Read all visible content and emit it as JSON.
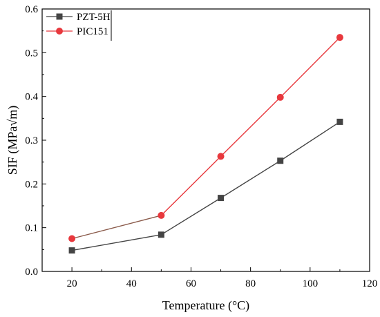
{
  "chart_data": {
    "type": "line",
    "xlabel": "Temperature (°C)",
    "ylabel": "SIF (MPa√m)",
    "xlim": [
      10,
      120
    ],
    "ylim": [
      0.0,
      0.6
    ],
    "xticks": [
      "20",
      "40",
      "60",
      "80",
      "100",
      "120"
    ],
    "yticks": [
      "0.0",
      "0.1",
      "0.2",
      "0.3",
      "0.4",
      "0.5",
      "0.6"
    ],
    "x": [
      20,
      50,
      70,
      90,
      110
    ],
    "legend_position": "top-left",
    "grid": false,
    "series": [
      {
        "name": "PZT-5H",
        "values": [
          0.048,
          0.084,
          0.168,
          0.253,
          0.342
        ],
        "color": "#444444",
        "line_color": "#444444",
        "marker": "square"
      },
      {
        "name": "PIC151",
        "values": [
          0.075,
          0.128,
          0.263,
          0.398,
          0.535
        ],
        "color": "#e8383d",
        "line_color": "#8a5a4a",
        "line_color_after": "#e8383d",
        "marker": "circle"
      }
    ]
  }
}
